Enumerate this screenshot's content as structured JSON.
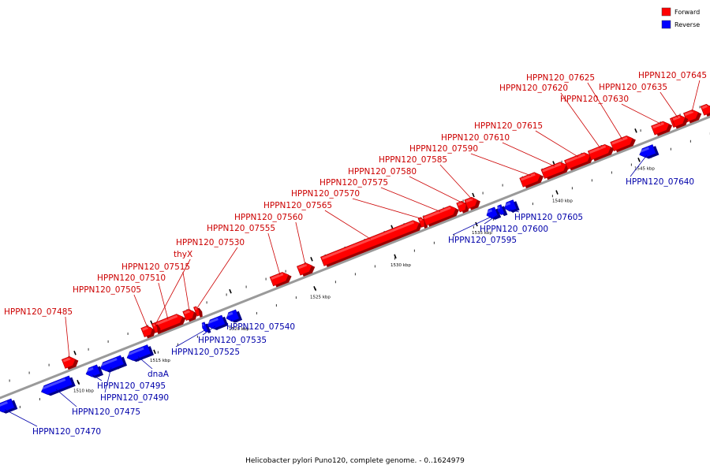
{
  "title": "Helicobacter pylori Puno120, complete genome. - 0..1624979",
  "legend": [
    {
      "label": "Forward",
      "color": "#ff0000"
    },
    {
      "label": "Reverse",
      "color": "#0000ff"
    }
  ],
  "colors": {
    "forward": "#ff0000",
    "reverse": "#0000ff",
    "forward_label": "#cc0000",
    "reverse_label": "#0000aa",
    "backbone": "#999999"
  },
  "ticks": [
    "1510 kbp",
    "1515 kbp",
    "1520 kbp",
    "1525 kbp",
    "1530 kbp",
    "1535 kbp",
    "1540 kbp",
    "1545 kbp"
  ],
  "genes": [
    {
      "name": "HPPN120_07470",
      "strand": "reverse"
    },
    {
      "name": "HPPN120_07475",
      "strand": "reverse"
    },
    {
      "name": "HPPN120_07485",
      "strand": "forward"
    },
    {
      "name": "HPPN120_07490",
      "strand": "reverse"
    },
    {
      "name": "HPPN120_07495",
      "strand": "reverse"
    },
    {
      "name": "dnaA",
      "strand": "reverse"
    },
    {
      "name": "HPPN120_07505",
      "strand": "forward"
    },
    {
      "name": "HPPN120_07510",
      "strand": "forward"
    },
    {
      "name": "HPPN120_07515",
      "strand": "forward"
    },
    {
      "name": "thyX",
      "strand": "forward"
    },
    {
      "name": "HPPN120_07530",
      "strand": "forward"
    },
    {
      "name": "HPPN120_07525",
      "strand": "reverse"
    },
    {
      "name": "HPPN120_07535",
      "strand": "reverse"
    },
    {
      "name": "HPPN120_07540",
      "strand": "reverse"
    },
    {
      "name": "HPPN120_07555",
      "strand": "forward"
    },
    {
      "name": "HPPN120_07560",
      "strand": "forward"
    },
    {
      "name": "HPPN120_07565",
      "strand": "forward"
    },
    {
      "name": "HPPN120_07570",
      "strand": "forward"
    },
    {
      "name": "HPPN120_07575",
      "strand": "forward"
    },
    {
      "name": "HPPN120_07580",
      "strand": "forward"
    },
    {
      "name": "HPPN120_07585",
      "strand": "forward"
    },
    {
      "name": "HPPN120_07590",
      "strand": "forward"
    },
    {
      "name": "HPPN120_07595",
      "strand": "reverse"
    },
    {
      "name": "HPPN120_07600",
      "strand": "reverse"
    },
    {
      "name": "HPPN120_07605",
      "strand": "reverse"
    },
    {
      "name": "HPPN120_07610",
      "strand": "forward"
    },
    {
      "name": "HPPN120_07615",
      "strand": "forward"
    },
    {
      "name": "HPPN120_07620",
      "strand": "forward"
    },
    {
      "name": "HPPN120_07625",
      "strand": "forward"
    },
    {
      "name": "HPPN120_07630",
      "strand": "forward"
    },
    {
      "name": "HPPN120_07635",
      "strand": "forward"
    },
    {
      "name": "HPPN120_07640",
      "strand": "reverse"
    },
    {
      "name": "HPPN120_07645",
      "strand": "forward"
    }
  ]
}
